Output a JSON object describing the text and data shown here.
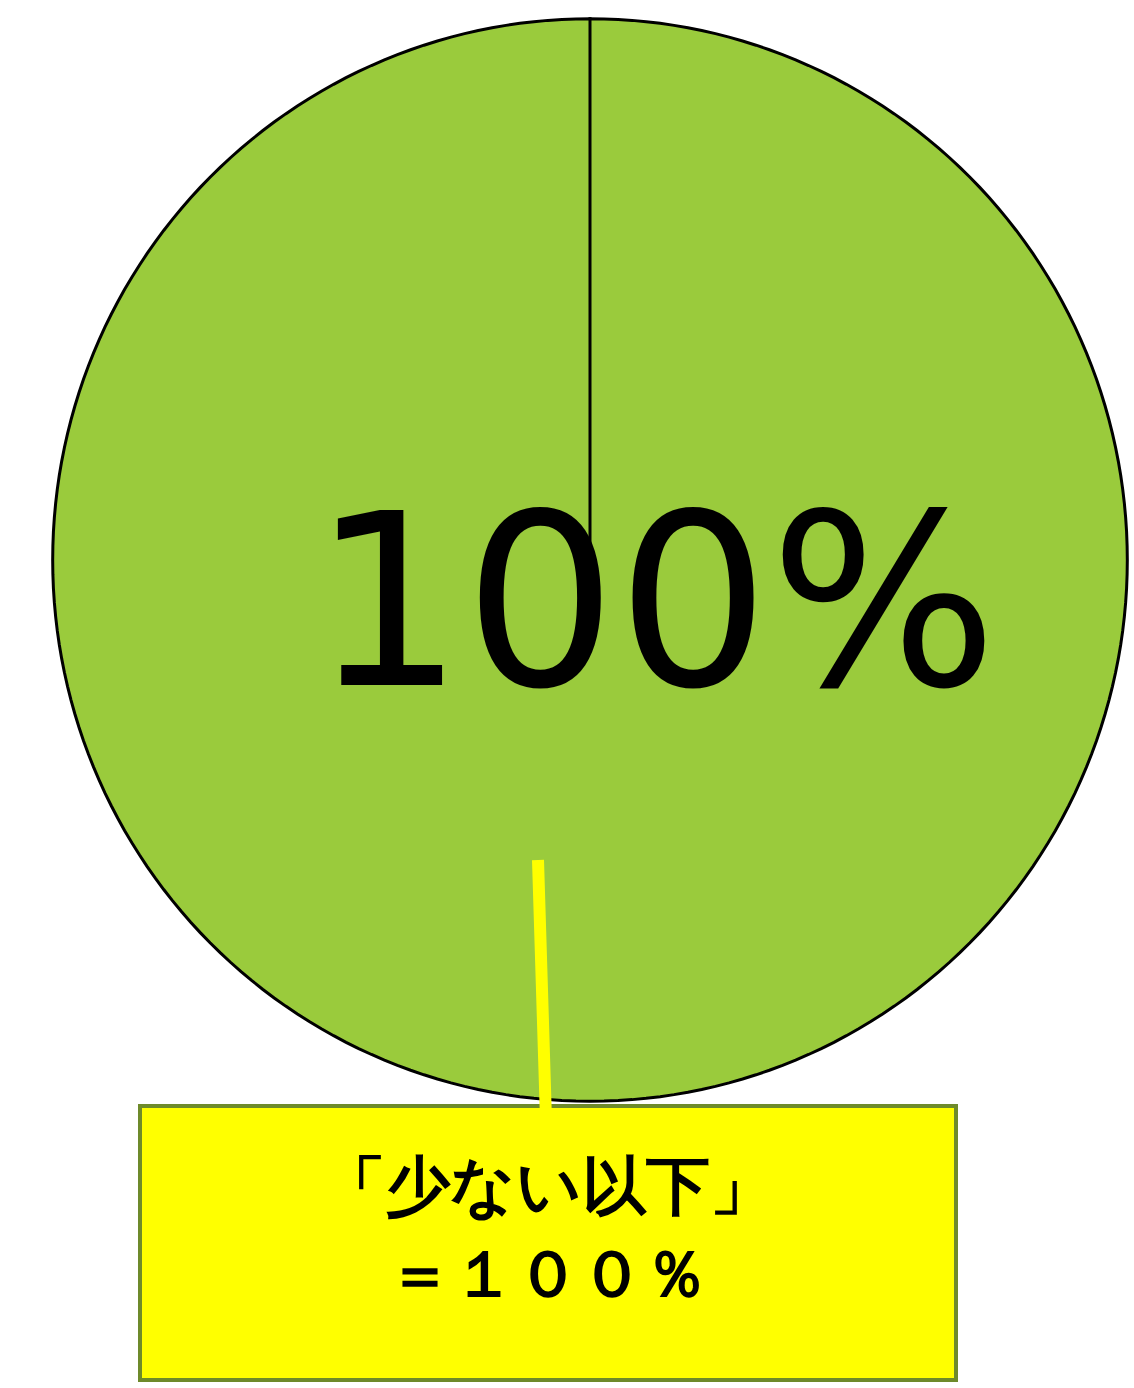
{
  "chart_data": {
    "type": "pie",
    "categories": [
      null
    ],
    "values": [
      100
    ],
    "colors": [
      "#9acb3c"
    ],
    "value_labels": [
      "100%"
    ],
    "annotations": [
      "「少ない以下」",
      "＝１００％"
    ]
  }
}
